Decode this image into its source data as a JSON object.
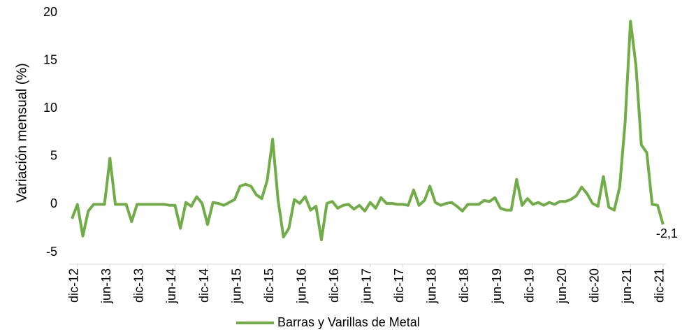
{
  "chart_data": {
    "type": "line",
    "ylabel": "Variación mensual (%)",
    "categories": [
      null,
      "dic-12",
      null,
      null,
      null,
      null,
      null,
      "jun-13",
      null,
      null,
      null,
      null,
      null,
      "dic-13",
      null,
      null,
      null,
      null,
      null,
      "jun-14",
      null,
      null,
      null,
      null,
      null,
      "dic-14",
      null,
      null,
      null,
      null,
      null,
      "jun-15",
      null,
      null,
      null,
      null,
      null,
      "dic-15",
      null,
      null,
      null,
      null,
      null,
      "jun-16",
      null,
      null,
      null,
      null,
      null,
      "dic-16",
      null,
      null,
      null,
      null,
      null,
      "jun-17",
      null,
      null,
      null,
      null,
      null,
      "dic-17",
      null,
      null,
      null,
      null,
      null,
      "jun-18",
      null,
      null,
      null,
      null,
      null,
      "dic-18",
      null,
      null,
      null,
      null,
      null,
      "jun-19",
      null,
      null,
      null,
      null,
      null,
      "dic-19",
      null,
      null,
      null,
      null,
      null,
      "jun-20",
      null,
      null,
      null,
      null,
      null,
      "dic-20",
      null,
      null,
      null,
      null,
      null,
      "jun-21",
      null,
      null,
      null,
      null,
      null,
      "dic-21"
    ],
    "series": [
      {
        "name": "Barras y Varillas de Metal",
        "color": "#70ad47",
        "values": [
          -1.5,
          0,
          -3.3,
          -0.7,
          0,
          0,
          0,
          4.8,
          0,
          0,
          0,
          -1.8,
          0,
          0,
          0,
          0,
          0,
          0,
          -0.1,
          -0.1,
          -2.5,
          0.2,
          -0.2,
          0.8,
          0.1,
          -2.1,
          0.2,
          0.1,
          -0.1,
          0.2,
          0.5,
          1.9,
          2.1,
          1.9,
          1.0,
          0.6,
          2.5,
          6.8,
          0.5,
          -3.4,
          -2.5,
          0.5,
          0.1,
          0.8,
          -0.6,
          -0.2,
          -3.7,
          0.1,
          0.3,
          -0.4,
          -0.1,
          0,
          -0.5,
          -0.1,
          -0.7,
          0.2,
          -0.4,
          0.7,
          0.1,
          0.1,
          0,
          0,
          -0.1,
          1.5,
          -0.1,
          0.4,
          1.9,
          0.2,
          -0.1,
          0.1,
          0.2,
          -0.2,
          -0.7,
          0,
          0,
          0,
          0.4,
          0.3,
          0.7,
          -0.4,
          -0.6,
          -0.6,
          2.6,
          -0.1,
          0.6,
          0,
          0.2,
          -0.1,
          0.2,
          0,
          0.3,
          0.3,
          0.5,
          0.9,
          1.8,
          1.1,
          0.1,
          -0.2,
          2.9,
          -0.3,
          -0.6,
          1.8,
          8.5,
          19.1,
          14.5,
          6.2,
          5.4,
          0,
          -0.1,
          -2.1
        ],
        "value_labels": [
          null,
          null,
          null,
          null,
          null,
          null,
          null,
          null,
          null,
          null,
          null,
          null,
          null,
          null,
          null,
          null,
          null,
          null,
          null,
          null,
          null,
          null,
          null,
          null,
          null,
          null,
          null,
          null,
          null,
          null,
          null,
          null,
          null,
          null,
          null,
          null,
          null,
          null,
          null,
          null,
          null,
          null,
          null,
          null,
          null,
          null,
          null,
          null,
          null,
          null,
          null,
          null,
          null,
          null,
          null,
          null,
          null,
          null,
          null,
          null,
          null,
          null,
          null,
          null,
          null,
          null,
          null,
          null,
          null,
          null,
          null,
          null,
          null,
          null,
          null,
          null,
          null,
          null,
          null,
          null,
          null,
          null,
          null,
          null,
          null,
          null,
          null,
          null,
          null,
          null,
          null,
          null,
          null,
          null,
          null,
          null,
          null,
          null,
          null,
          null,
          null,
          null,
          null,
          null,
          null,
          null,
          null,
          null,
          null,
          "-2,1"
        ]
      }
    ],
    "ylim": [
      -5,
      20
    ],
    "yticks": [
      -5,
      0,
      5,
      10,
      15,
      20
    ],
    "legend": "bottom"
  }
}
